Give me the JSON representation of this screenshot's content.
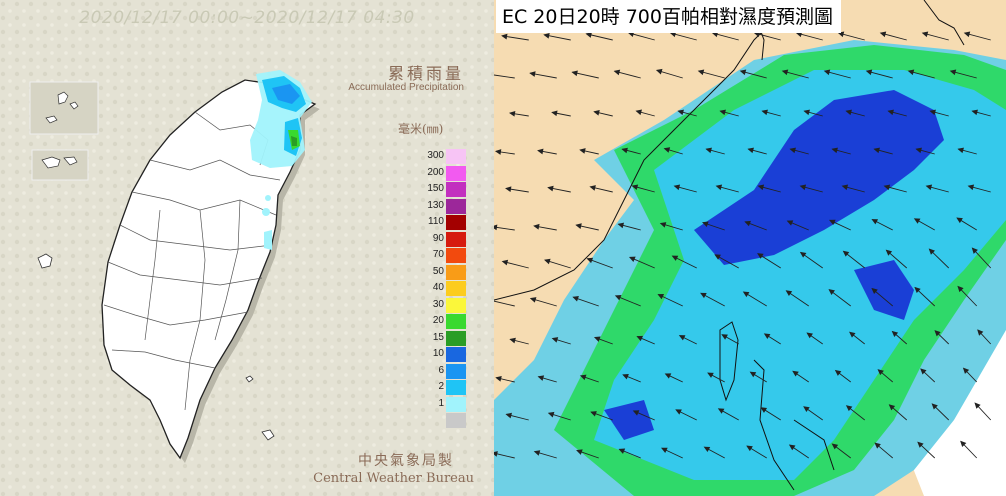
{
  "precip_map": {
    "time_range": "2020/12/17 00:00~2020/12/17 04:30",
    "title_cn": "累積雨量",
    "title_en": "Accumulated Precipitation",
    "unit": "毫米(㎜)",
    "legend": [
      {
        "label": "300",
        "color": "#f7c4f5"
      },
      {
        "label": "200",
        "color": "#f25af0"
      },
      {
        "label": "150",
        "color": "#c22fbf"
      },
      {
        "label": "130",
        "color": "#9c279a"
      },
      {
        "label": "110",
        "color": "#a30000"
      },
      {
        "label": "90",
        "color": "#d61a0e"
      },
      {
        "label": "70",
        "color": "#f24a0e"
      },
      {
        "label": "50",
        "color": "#f99c17"
      },
      {
        "label": "40",
        "color": "#fccc1e"
      },
      {
        "label": "30",
        "color": "#fbf73a"
      },
      {
        "label": "20",
        "color": "#39d92f"
      },
      {
        "label": "15",
        "color": "#2a9d25"
      },
      {
        "label": "10",
        "color": "#1967e0"
      },
      {
        "label": "6",
        "color": "#1a95f2"
      },
      {
        "label": "2",
        "color": "#1fc4f5"
      },
      {
        "label": "1",
        "color": "#a1f3fc"
      },
      {
        "label": "",
        "color": "#c9c9c9"
      }
    ],
    "agency_cn": "中央氣象局製",
    "agency_en": "Central Weather Bureau"
  },
  "humidity_map": {
    "title": "EC 20日20時 700百帕相對濕度預測圖"
  },
  "colors": {
    "land": "#f6dcb2",
    "humid_light": "#35c9eb",
    "humid_green": "#2fd96a",
    "humid_dark": "#1a3fd6",
    "humid_mid": "#6fd0e5",
    "background_panel": "#e4e2d4"
  }
}
